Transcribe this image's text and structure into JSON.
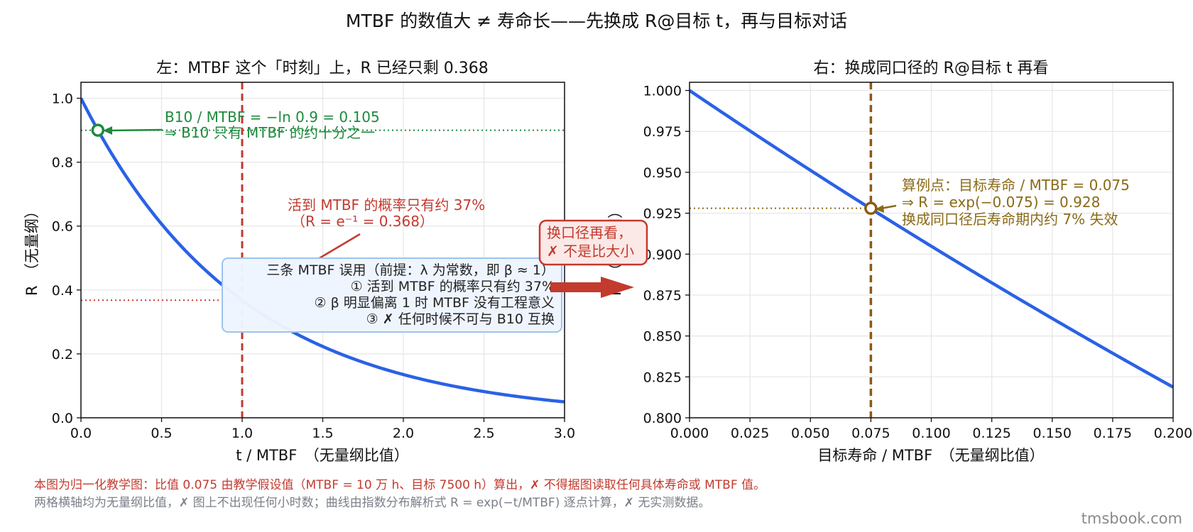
{
  "suptitle": "MTBF 的数值大 ≠ 寿命长——先换成 R@目标 t，再与目标对话",
  "colors": {
    "curve": "#2a62e6",
    "red": "#c33a2e",
    "green": "#1e8a3c",
    "brown": "#8a5a16",
    "gold": "#8a6a18",
    "grid": "#e6e6e6",
    "box_fill": "#eef5ff",
    "box_stroke": "#9cc3ec",
    "callout_fill": "#fbe9e7",
    "footer_red": "#c33a2e",
    "footer_gray": "#7a7f88",
    "watermark": "#8a8a8a"
  },
  "chart_data": [
    {
      "type": "line",
      "title": "左：MTBF 这个「时刻」上，R 已经只剩 0.368",
      "xlabel": "t / MTBF　（无量纲比值）",
      "ylabel": "R　（无量纲）",
      "xlim": [
        0,
        3
      ],
      "ylim": [
        0,
        1.05
      ],
      "xticks": [
        "0.0",
        "0.5",
        "1.0",
        "1.5",
        "2.0",
        "2.5",
        "3.0"
      ],
      "yticks": [
        "0.0",
        "0.2",
        "0.4",
        "0.6",
        "0.8",
        "1.0"
      ],
      "grid": true,
      "series": [
        {
          "x": [
            0,
            0.1,
            0.2,
            0.3,
            0.4,
            0.5,
            0.6,
            0.7,
            0.8,
            0.9,
            1.0,
            1.2,
            1.4,
            1.6,
            1.8,
            2.0,
            2.2,
            2.4,
            2.6,
            2.8,
            3.0
          ],
          "y": [
            1.0,
            0.905,
            0.819,
            0.741,
            0.67,
            0.607,
            0.549,
            0.497,
            0.449,
            0.407,
            0.368,
            0.301,
            0.247,
            0.202,
            0.165,
            0.135,
            0.111,
            0.091,
            0.074,
            0.061,
            0.05
          ]
        }
      ],
      "vline": {
        "x": 1.0
      },
      "hline_red": {
        "y": 0.368
      },
      "hline_green": {
        "y": 0.9
      },
      "b10_point": {
        "x": 0.105,
        "y": 0.9
      },
      "annotations": {
        "b10_line1": "B10 / MTBF = −ln 0.9 = 0.105",
        "b10_line2": "⇒ B10 只有 MTBF 的约十分之一",
        "mtbf_line1": "活到 MTBF 的概率只有约 37%",
        "mtbf_line2": "（R = e⁻¹ = 0.368）"
      },
      "box": {
        "title": "三条 MTBF 误用（前提：λ 为常数，即 β ≈ 1）",
        "item1": "① 活到 MTBF 的概率只有约 37%",
        "item2": "② β 明显偏离 1 时 MTBF 没有工程意义",
        "item3": "③ ✗ 任何时候不可与 B10 互换"
      }
    },
    {
      "type": "line",
      "title": "右：换成同口径的 R@目标 t 再看",
      "xlabel": "目标寿命 / MTBF　（无量纲比值）",
      "ylabel": "R　（无量纲）",
      "xlim": [
        0,
        0.2
      ],
      "ylim": [
        0.8,
        1.005
      ],
      "xticks": [
        "0.000",
        "0.025",
        "0.050",
        "0.075",
        "0.100",
        "0.125",
        "0.150",
        "0.175",
        "0.200"
      ],
      "yticks": [
        "0.800",
        "0.825",
        "0.850",
        "0.875",
        "0.900",
        "0.925",
        "0.950",
        "0.975",
        "1.000"
      ],
      "grid": true,
      "series": [
        {
          "x": [
            0,
            0.025,
            0.05,
            0.075,
            0.1,
            0.125,
            0.15,
            0.175,
            0.2
          ],
          "y": [
            1.0,
            0.975,
            0.951,
            0.928,
            0.905,
            0.882,
            0.861,
            0.839,
            0.819
          ]
        }
      ],
      "vline": {
        "x": 0.075
      },
      "example_point": {
        "x": 0.075,
        "y": 0.928
      },
      "annotations": {
        "ex_line1": "算例点：目标寿命 / MTBF = 0.075",
        "ex_line2": "⇒ R = exp(−0.075) = 0.928",
        "ex_line3": "换成同口径后寿命期内约 7% 失效"
      }
    }
  ],
  "callout": {
    "line1": "换口径再看，",
    "line2": "✗ 不是比大小"
  },
  "footer": {
    "line1": "本图为归一化教学图：比值 0.075 由教学假设值（MTBF = 10 万 h、目标 7500 h）算出，✗ 不得据图读取任何具体寿命或 MTBF 值。",
    "line2": "两格横轴均为无量纲比值，✗ 图上不出现任何小时数；曲线由指数分布解析式 R = exp(−t/MTBF) 逐点计算，✗ 无实测数据。"
  },
  "watermark": "tmsbook.com"
}
